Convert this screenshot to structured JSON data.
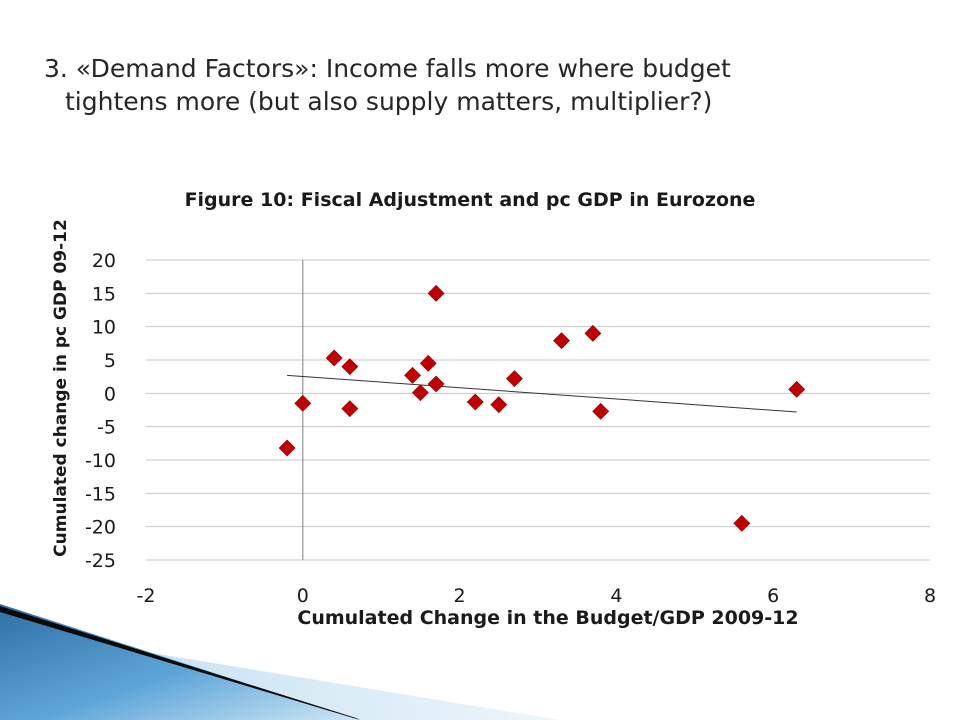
{
  "slide": {
    "title_line1": "3. «Demand Factors»: Income falls more where budget",
    "title_line2": "tightens more (but also supply matters, multiplier?)"
  },
  "colors": {
    "marker": "#c00000",
    "trendline": "#333333",
    "gridline": "#c8c8c8",
    "axis": "#7f7f7f",
    "decoration_dark": "#0a0a0a",
    "decoration_blue": "#3a7fb6"
  },
  "chart_data": {
    "type": "scatter",
    "title": "Figure 10: Fiscal Adjustment and pc GDP in Eurozone",
    "xlabel": "Cumulated Change in the Budget/GDP 2009-12",
    "ylabel": "Cumulated change in pc GDP  09-12",
    "xlim": [
      -2,
      8
    ],
    "ylim": [
      -25,
      20
    ],
    "x_ticks": [
      "-2",
      "0",
      "2",
      "4",
      "6",
      "8"
    ],
    "x_tick_values": [
      -2,
      0,
      2,
      4,
      6,
      8
    ],
    "y_ticks": [
      "20",
      "15",
      "10",
      "5",
      "0",
      "-5",
      "-10",
      "-15",
      "-20",
      "-25"
    ],
    "y_tick_values": [
      20,
      15,
      10,
      5,
      0,
      -5,
      -10,
      -15,
      -20,
      -25
    ],
    "grid": "horizontal",
    "marker": "diamond",
    "points": [
      {
        "x": -0.2,
        "y": -8.2
      },
      {
        "x": 0.0,
        "y": -1.5
      },
      {
        "x": 0.4,
        "y": 5.3
      },
      {
        "x": 0.6,
        "y": 4.0
      },
      {
        "x": 0.6,
        "y": -2.3
      },
      {
        "x": 1.4,
        "y": 2.7
      },
      {
        "x": 1.5,
        "y": 0.1
      },
      {
        "x": 1.6,
        "y": 4.5
      },
      {
        "x": 1.7,
        "y": 1.4
      },
      {
        "x": 1.7,
        "y": 15.0
      },
      {
        "x": 2.2,
        "y": -1.3
      },
      {
        "x": 2.5,
        "y": -1.7
      },
      {
        "x": 2.7,
        "y": 2.2
      },
      {
        "x": 3.3,
        "y": 7.9
      },
      {
        "x": 3.7,
        "y": 9.0
      },
      {
        "x": 3.8,
        "y": -2.7
      },
      {
        "x": 5.6,
        "y": -19.5
      },
      {
        "x": 6.3,
        "y": 0.6
      }
    ],
    "trendline": {
      "x": [
        -0.2,
        6.3
      ],
      "y": [
        2.7,
        -2.8
      ]
    }
  }
}
